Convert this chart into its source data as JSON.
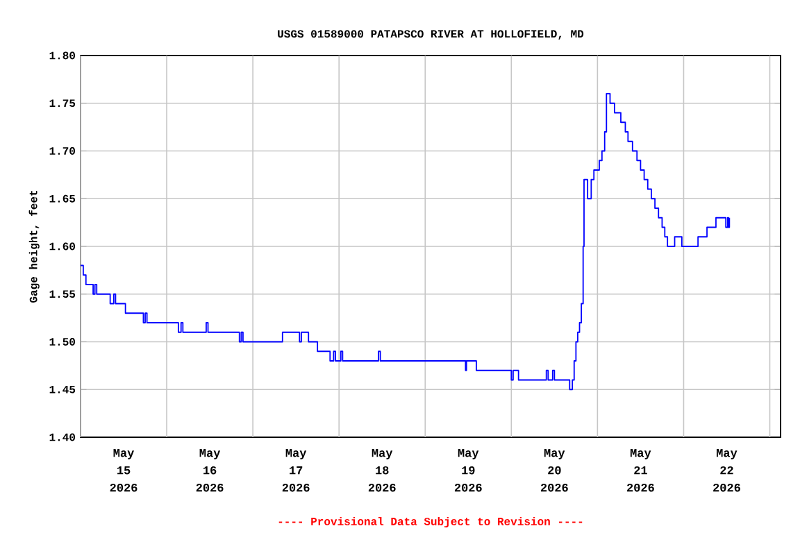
{
  "chart_data": {
    "type": "step",
    "title": "USGS 01589000 PATAPSCO RIVER AT HOLLOFIELD, MD",
    "ylabel": "Gage height, feet",
    "annotations": [
      "---- Provisional Data Subject to Revision ----"
    ],
    "xlim": [
      "2026-05-15T00:00",
      "2026-05-23T03:00"
    ],
    "ylim": [
      1.4,
      1.8
    ],
    "yticks": [
      {
        "value": 1.4,
        "label": "1.40"
      },
      {
        "value": 1.45,
        "label": "1.45"
      },
      {
        "value": 1.5,
        "label": "1.50"
      },
      {
        "value": 1.55,
        "label": "1.55"
      },
      {
        "value": 1.6,
        "label": "1.60"
      },
      {
        "value": 1.65,
        "label": "1.65"
      },
      {
        "value": 1.7,
        "label": "1.70"
      },
      {
        "value": 1.75,
        "label": "1.75"
      },
      {
        "value": 1.8,
        "label": "1.80"
      }
    ],
    "xticks": [
      {
        "value": "2026-05-15T00:00",
        "label": null
      },
      {
        "value": "2026-05-15T12:00",
        "label": "May 15 2026"
      },
      {
        "value": "2026-05-16T00:00",
        "label": null
      },
      {
        "value": "2026-05-16T12:00",
        "label": "May 16 2026"
      },
      {
        "value": "2026-05-17T00:00",
        "label": null
      },
      {
        "value": "2026-05-17T12:00",
        "label": "May 17 2026"
      },
      {
        "value": "2026-05-18T00:00",
        "label": null
      },
      {
        "value": "2026-05-18T12:00",
        "label": "May 18 2026"
      },
      {
        "value": "2026-05-19T00:00",
        "label": null
      },
      {
        "value": "2026-05-19T12:00",
        "label": "May 19 2026"
      },
      {
        "value": "2026-05-20T00:00",
        "label": null
      },
      {
        "value": "2026-05-20T12:00",
        "label": "May 20 2026"
      },
      {
        "value": "2026-05-21T00:00",
        "label": null
      },
      {
        "value": "2026-05-21T12:00",
        "label": "May 21 2026"
      },
      {
        "value": "2026-05-22T00:00",
        "label": null
      },
      {
        "value": "2026-05-22T12:00",
        "label": "May 22 2026"
      },
      {
        "value": "2026-05-23T00:00",
        "label": null
      }
    ],
    "grid": true,
    "series": [
      {
        "color": "#0000ff",
        "x": [
          "2026-05-15T00:00",
          "2026-05-15T00:45",
          "2026-05-15T01:30",
          "2026-05-15T03:30",
          "2026-05-15T04:00",
          "2026-05-15T04:30",
          "2026-05-15T08:15",
          "2026-05-15T09:15",
          "2026-05-15T09:45",
          "2026-05-15T12:30",
          "2026-05-15T17:30",
          "2026-05-15T18:00",
          "2026-05-15T18:30",
          "2026-05-16T03:15",
          "2026-05-16T04:00",
          "2026-05-16T04:30",
          "2026-05-16T11:00",
          "2026-05-16T11:30",
          "2026-05-16T20:15",
          "2026-05-16T20:45",
          "2026-05-16T21:15",
          "2026-05-17T08:15",
          "2026-05-17T13:00",
          "2026-05-17T13:30",
          "2026-05-17T15:30",
          "2026-05-17T18:00",
          "2026-05-17T21:30",
          "2026-05-17T22:30",
          "2026-05-17T23:00",
          "2026-05-18T00:30",
          "2026-05-18T01:00",
          "2026-05-18T11:00",
          "2026-05-18T11:30",
          "2026-05-19T11:15",
          "2026-05-19T11:30",
          "2026-05-19T14:15",
          "2026-05-20T00:00",
          "2026-05-20T00:30",
          "2026-05-20T02:00",
          "2026-05-20T09:45",
          "2026-05-20T10:15",
          "2026-05-20T11:30",
          "2026-05-20T12:00",
          "2026-05-20T16:15",
          "2026-05-20T17:00",
          "2026-05-20T17:30",
          "2026-05-20T18:00",
          "2026-05-20T18:30",
          "2026-05-20T19:00",
          "2026-05-20T19:30",
          "2026-05-20T20:00",
          "2026-05-20T20:15",
          "2026-05-20T21:15",
          "2026-05-20T22:15",
          "2026-05-20T23:00",
          "2026-05-21T00:30",
          "2026-05-21T01:15",
          "2026-05-21T02:00",
          "2026-05-21T02:30",
          "2026-05-21T03:30",
          "2026-05-21T04:45",
          "2026-05-21T06:30",
          "2026-05-21T07:45",
          "2026-05-21T08:30",
          "2026-05-21T09:45",
          "2026-05-21T11:00",
          "2026-05-21T12:00",
          "2026-05-21T13:00",
          "2026-05-21T14:00",
          "2026-05-21T15:00",
          "2026-05-21T16:00",
          "2026-05-21T17:00",
          "2026-05-21T18:00",
          "2026-05-21T18:45",
          "2026-05-21T19:30",
          "2026-05-21T21:30",
          "2026-05-21T23:30",
          "2026-05-22T04:00",
          "2026-05-22T06:30",
          "2026-05-22T09:00",
          "2026-05-22T11:45",
          "2026-05-22T12:15",
          "2026-05-22T12:30",
          "2026-05-22T12:45"
        ],
        "values": [
          1.58,
          1.57,
          1.56,
          1.55,
          1.56,
          1.55,
          1.54,
          1.55,
          1.54,
          1.53,
          1.52,
          1.53,
          1.52,
          1.51,
          1.52,
          1.51,
          1.52,
          1.51,
          1.5,
          1.51,
          1.5,
          1.51,
          1.5,
          1.51,
          1.5,
          1.49,
          1.48,
          1.49,
          1.48,
          1.49,
          1.48,
          1.49,
          1.48,
          1.47,
          1.48,
          1.47,
          1.46,
          1.47,
          1.46,
          1.47,
          1.46,
          1.47,
          1.46,
          1.45,
          1.46,
          1.48,
          1.5,
          1.51,
          1.52,
          1.54,
          1.6,
          1.67,
          1.65,
          1.67,
          1.68,
          1.69,
          1.7,
          1.72,
          1.76,
          1.75,
          1.74,
          1.73,
          1.72,
          1.71,
          1.7,
          1.69,
          1.68,
          1.67,
          1.66,
          1.65,
          1.64,
          1.63,
          1.62,
          1.61,
          1.6,
          1.61,
          1.6,
          1.61,
          1.62,
          1.63,
          1.62,
          1.63,
          1.62,
          1.63
        ]
      }
    ]
  }
}
